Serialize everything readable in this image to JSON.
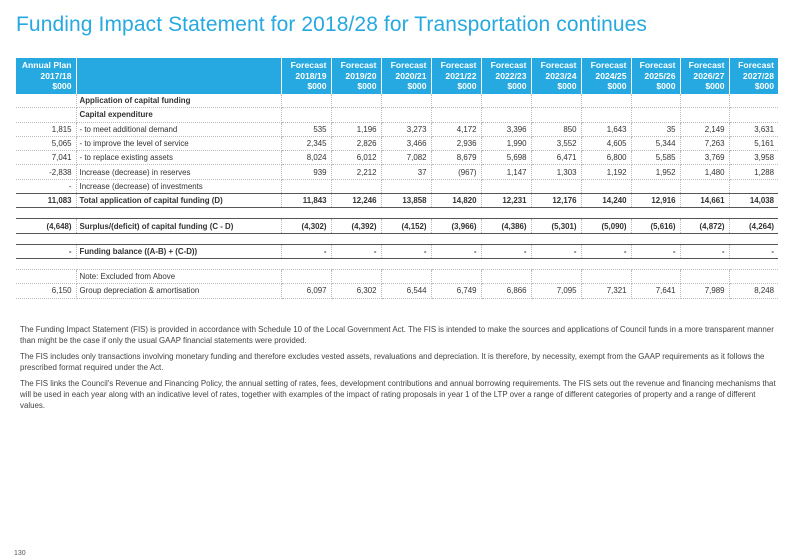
{
  "title": "Funding Impact Statement for 2018/28 for Transportation continues",
  "table": {
    "headers": [
      [
        "Annual Plan",
        "2017/18",
        "$000"
      ],
      [],
      [
        "Forecast",
        "2018/19",
        "$000"
      ],
      [
        "Forecast",
        "2019/20",
        "$000"
      ],
      [
        "Forecast",
        "2020/21",
        "$000"
      ],
      [
        "Forecast",
        "2021/22",
        "$000"
      ],
      [
        "Forecast",
        "2022/23",
        "$000"
      ],
      [
        "Forecast",
        "2023/24",
        "$000"
      ],
      [
        "Forecast",
        "2024/25",
        "$000"
      ],
      [
        "Forecast",
        "2025/26",
        "$000"
      ],
      [
        "Forecast",
        "2026/27",
        "$000"
      ],
      [
        "Forecast",
        "2027/28",
        "$000"
      ]
    ],
    "rows": [
      {
        "kind": "section",
        "cells": [
          "",
          "Application of capital funding",
          "",
          "",
          "",
          "",
          "",
          "",
          "",
          "",
          "",
          ""
        ]
      },
      {
        "kind": "section",
        "cells": [
          "",
          "Capital expenditure",
          "",
          "",
          "",
          "",
          "",
          "",
          "",
          "",
          "",
          ""
        ]
      },
      {
        "kind": "normal",
        "cells": [
          "1,815",
          "- to meet additional demand",
          "535",
          "1,196",
          "3,273",
          "4,172",
          "3,396",
          "850",
          "1,643",
          "35",
          "2,149",
          "3,631"
        ]
      },
      {
        "kind": "normal",
        "cells": [
          "5,065",
          "- to improve the level of service",
          "2,345",
          "2,826",
          "3,466",
          "2,936",
          "1,990",
          "3,552",
          "4,605",
          "5,344",
          "7,263",
          "5,161"
        ]
      },
      {
        "kind": "normal",
        "cells": [
          "7,041",
          "- to replace existing assets",
          "8,024",
          "6,012",
          "7,082",
          "8,679",
          "5,698",
          "6,471",
          "6,800",
          "5,585",
          "3,769",
          "3,958"
        ]
      },
      {
        "kind": "normal",
        "cells": [
          "-2,838",
          "Increase (decrease) in reserves",
          "939",
          "2,212",
          "37",
          "(967)",
          "1,147",
          "1,303",
          "1,192",
          "1,952",
          "1,480",
          "1,288"
        ]
      },
      {
        "kind": "normal",
        "cells": [
          "-",
          "Increase (decrease) of investments",
          "",
          "",
          "",
          "",
          "",
          "",
          "",
          "",
          "",
          ""
        ]
      },
      {
        "kind": "total",
        "cells": [
          "11,083",
          "Total application of capital funding (D)",
          "11,843",
          "12,246",
          "13,858",
          "14,820",
          "12,231",
          "12,176",
          "14,240",
          "12,916",
          "14,661",
          "14,038"
        ]
      },
      {
        "kind": "gap",
        "cells": [
          "",
          "",
          "",
          "",
          "",
          "",
          "",
          "",
          "",
          "",
          "",
          ""
        ]
      },
      {
        "kind": "total",
        "cells": [
          "(4,648)",
          "Surplus/(deficit) of capital funding (C - D)",
          "(4,302)",
          "(4,392)",
          "(4,152)",
          "(3,966)",
          "(4,386)",
          "(5,301)",
          "(5,090)",
          "(5,616)",
          "(4,872)",
          "(4,264)"
        ]
      },
      {
        "kind": "gap",
        "cells": [
          "",
          "",
          "",
          "",
          "",
          "",
          "",
          "",
          "",
          "",
          "",
          ""
        ]
      },
      {
        "kind": "total",
        "cells": [
          "-",
          "Funding balance ((A-B) + (C-D))",
          "-",
          "-",
          "-",
          "-",
          "-",
          "-",
          "-",
          "-",
          "-",
          "-"
        ]
      },
      {
        "kind": "gap",
        "cells": [
          "",
          "",
          "",
          "",
          "",
          "",
          "",
          "",
          "",
          "",
          "",
          ""
        ]
      },
      {
        "kind": "normal",
        "cells": [
          "",
          "Note: Excluded from Above",
          "",
          "",
          "",
          "",
          "",
          "",
          "",
          "",
          "",
          ""
        ]
      },
      {
        "kind": "normal",
        "cells": [
          "6,150",
          "Group depreciation & amortisation",
          "6,097",
          "6,302",
          "6,544",
          "6,749",
          "6,866",
          "7,095",
          "7,321",
          "7,641",
          "7,989",
          "8,248"
        ]
      }
    ]
  },
  "notes": [
    "The Funding Impact Statement (FIS) is provided in accordance with Schedule 10 of the Local Government Act. The FIS is intended to make the sources and applications of Council funds in a more transparent manner than might be the case if only the usual GAAP financial statements were provided.",
    "The FIS includes only transactions involving monetary funding and therefore excludes vested assets, revaluations and depreciation.  It is therefore, by necessity, exempt from the GAAP requirements as it follows the prescribed format required under the Act.",
    "The FIS links the Council's Revenue and Financing Policy, the annual setting of rates, fees, development contributions and annual borrowing requirements. The FIS sets out the revenue and financing mechanisms that will be used in each year along with an indicative level of rates, together with examples of the impact of rating proposals in year 1 of the LTP over a range of different categories of property and a range of different values."
  ],
  "page_number": "130"
}
